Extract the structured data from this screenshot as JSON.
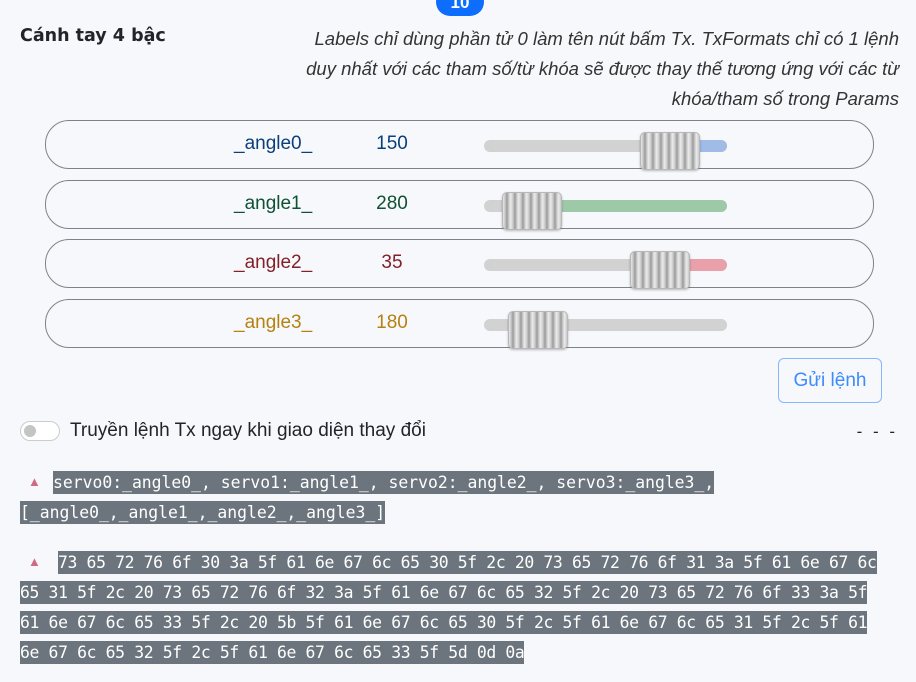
{
  "badge": "10",
  "title": "Cánh tay 4 bậc",
  "description": "Labels chỉ dùng phần tử 0 làm tên nút bấm Tx. TxFormats chỉ có 1 lệnh duy nhất với các tham số/từ khóa sẽ được thay thế tương ứng với các từ khóa/tham số trong Params",
  "sliders": [
    {
      "name": "_angle0_",
      "value": "150",
      "color": "#0a3f7a",
      "fill_color": "#9fbbe6",
      "fill_side": "right",
      "min": 0,
      "max": 180
    },
    {
      "name": "_angle1_",
      "value": "280",
      "color": "#0f5132",
      "fill_color": "#9ec9a9",
      "fill_side": "right",
      "min": 270,
      "max": 360
    },
    {
      "name": "_angle2_",
      "value": "35",
      "color": "#842029",
      "fill_color": "#e9a0aa",
      "fill_side": "right",
      "min": 0,
      "max": 45
    },
    {
      "name": "_angle3_",
      "value": "180",
      "color": "#b58210",
      "fill_color": "#d2d2d2",
      "fill_side": "right",
      "min": 165,
      "max": 270
    }
  ],
  "send_button": "Gửi lệnh",
  "toggle": {
    "label": "Truyền lệnh Tx ngay khi giao diện thay đổi",
    "checked": false
  },
  "status_dashes": "- - -",
  "tx_preview": {
    "line1": "servo0:_angle0_, servo1:_angle1_, servo2:_angle2_, servo3:_angle3_,",
    "line2": "[_angle0_,_angle1_,_angle2_,_angle3_]"
  },
  "hex_preview": [
    "73 65 72 76 6f 30 3a 5f 61 6e 67 6c 65 30 5f 2c 20 73 65 72 76 6f 31 3a 5f 61 6e 67 6c",
    "65 31 5f 2c 20 73 65 72 76 6f 32 3a 5f 61 6e 67 6c 65 32 5f 2c 20 73 65 72 76 6f 33 3a 5f",
    "61 6e 67 6c 65 33 5f 2c 20 5b 5f 61 6e 67 6c 65 30 5f 2c 5f 61 6e 67 6c 65 31 5f 2c 5f 61",
    "6e 67 6c 65 32 5f 2c 5f 61 6e 67 6c 65 33 5f 5d 0d 0a"
  ],
  "icons": {
    "expand_tx": "caret-up-icon",
    "expand_hex": "caret-up-icon"
  }
}
